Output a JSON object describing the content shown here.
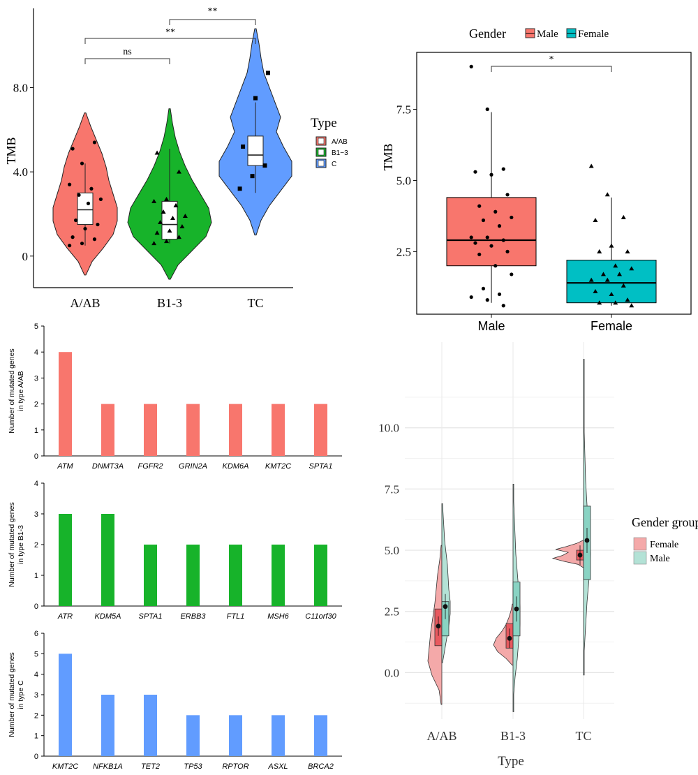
{
  "chart_data": [
    {
      "type": "violin",
      "panel": "A",
      "ylabel": "TMB",
      "categories": [
        "A/AB",
        "B1-3",
        "TC"
      ],
      "yticks": [
        "0",
        "4.0",
        "8.0"
      ],
      "ylim": [
        -1.5,
        11.5
      ],
      "legend": {
        "title": "Type",
        "labels": [
          "A/AB",
          "B1−3",
          "C"
        ],
        "placement": "right"
      },
      "colors": {
        "A/AB": "#f8766d",
        "B1-3": "#17b32a",
        "TC": "#619cff"
      },
      "box_stats": [
        {
          "category": "A/AB",
          "q1": 1.5,
          "median": 2.2,
          "q3": 3.0,
          "low": 0.5,
          "high": 4.4
        },
        {
          "category": "B1-3",
          "q1": 0.8,
          "median": 1.5,
          "q3": 2.6,
          "low": 0.6,
          "high": 5.1
        },
        {
          "category": "TC",
          "q1": 4.3,
          "median": 4.8,
          "q3": 5.7,
          "low": 3.0,
          "high": 7.3
        }
      ],
      "violin_range": [
        {
          "category": "A/AB",
          "min": -0.9,
          "max": 6.8
        },
        {
          "category": "B1-3",
          "min": -1.1,
          "max": 7.0
        },
        {
          "category": "TC",
          "min": 1.0,
          "max": 10.8
        }
      ],
      "points": [
        {
          "category": "A/AB",
          "shape": "circle",
          "values": [
            0.5,
            0.6,
            0.8,
            0.9,
            1.3,
            1.5,
            1.7,
            2.5,
            2.7,
            2.9,
            3.2,
            3.4,
            4.4,
            5.4,
            5.1
          ]
        },
        {
          "category": "B1-3",
          "shape": "triangle",
          "values": [
            0.6,
            0.7,
            0.9,
            1.1,
            1.2,
            1.4,
            1.6,
            1.8,
            1.9,
            2.1,
            2.4,
            2.6,
            2.7,
            4.0,
            4.9
          ]
        },
        {
          "category": "TC",
          "shape": "square",
          "values": [
            3.2,
            3.8,
            4.3,
            5.2,
            7.5,
            8.7
          ]
        }
      ],
      "significance": [
        {
          "pair": [
            "A/AB",
            "B1-3"
          ],
          "label": "ns"
        },
        {
          "pair": [
            "A/AB",
            "TC"
          ],
          "label": "**"
        },
        {
          "pair": [
            "B1-3",
            "TC"
          ],
          "label": "**"
        }
      ]
    },
    {
      "type": "box",
      "panel": "B",
      "ylabel": "TMB",
      "categories": [
        "Male",
        "Female"
      ],
      "yticks": [
        "2.5",
        "5.0",
        "7.5"
      ],
      "ylim": [
        0.3,
        9.5
      ],
      "legend": {
        "title": "Gender",
        "labels": [
          "Male",
          "Female"
        ],
        "placement": "top"
      },
      "colors": {
        "Male": "#f8766d",
        "Female": "#00bfc4"
      },
      "box_stats": [
        {
          "category": "Male",
          "q1": 2.0,
          "median": 2.9,
          "q3": 4.4,
          "low": 0.7,
          "high": 7.4
        },
        {
          "category": "Female",
          "q1": 0.7,
          "median": 1.4,
          "q3": 2.2,
          "low": 0.6,
          "high": 4.4
        }
      ],
      "points": [
        {
          "category": "Male",
          "shape": "circle",
          "values": [
            9.0,
            7.5,
            5.4,
            5.3,
            5.2,
            4.5,
            4.1,
            3.9,
            3.7,
            3.6,
            3.4,
            3.0,
            3.0,
            2.9,
            2.8,
            2.7,
            2.5,
            2.4,
            2.0,
            1.7,
            1.2,
            1.0,
            0.9,
            0.8,
            0.6
          ]
        },
        {
          "category": "Female",
          "shape": "triangle",
          "values": [
            5.5,
            4.5,
            3.7,
            3.6,
            2.7,
            2.5,
            2.5,
            2.0,
            1.9,
            1.7,
            1.7,
            1.5,
            1.5,
            1.3,
            1.1,
            1.0,
            0.8,
            0.7,
            0.7,
            0.6
          ]
        }
      ],
      "significance": [
        {
          "pair": [
            "Male",
            "Female"
          ],
          "label": "*"
        }
      ]
    },
    {
      "type": "bar",
      "panel": "C1",
      "ylabel": "Number of mutated genes in type A/AB",
      "categories": [
        "ATM",
        "DNMT3A",
        "FGFR2",
        "GRIN2A",
        "KDM6A",
        "KMT2C",
        "SPTA1"
      ],
      "values": [
        4,
        2,
        2,
        2,
        2,
        2,
        2
      ],
      "ylim": [
        0,
        5
      ],
      "yticks": [
        "0",
        "1",
        "2",
        "3",
        "4",
        "5"
      ],
      "color": "#f8766d"
    },
    {
      "type": "bar",
      "panel": "C2",
      "ylabel": "Number of mutated genes in type B1-3",
      "categories": [
        "ATR",
        "KDM5A",
        "SPTA1",
        "ERBB3",
        "FTL1",
        "MSH6",
        "C11orf30"
      ],
      "values": [
        3,
        3,
        2,
        2,
        2,
        2,
        2
      ],
      "ylim": [
        0,
        4
      ],
      "yticks": [
        "0",
        "1",
        "2",
        "3",
        "4"
      ],
      "color": "#17b32a"
    },
    {
      "type": "bar",
      "panel": "C3",
      "ylabel": "Number of mutated genes in type C",
      "categories": [
        "KMT2C",
        "NFKB1A",
        "TET2",
        "TP53",
        "RPTOR",
        "ASXL",
        "BRCA2"
      ],
      "values": [
        5,
        3,
        3,
        2,
        2,
        2,
        2
      ],
      "ylim": [
        0,
        6
      ],
      "yticks": [
        "0",
        "1",
        "2",
        "3",
        "4",
        "5",
        "6"
      ],
      "color": "#619cff"
    },
    {
      "type": "split-violin",
      "panel": "D",
      "xlabel": "Type",
      "categories": [
        "A/AB",
        "B1-3",
        "TC"
      ],
      "yticks": [
        "0.0",
        "2.5",
        "5.0",
        "7.5",
        "10.0"
      ],
      "ylim": [
        -1.9,
        13.5
      ],
      "grid": true,
      "legend": {
        "title": "Gender group",
        "labels": [
          "Female",
          "Male"
        ],
        "placement": "right"
      },
      "colors": {
        "Female": "#e8595f",
        "Male": "#89d3c3"
      },
      "groups": [
        {
          "category": "A/AB",
          "female": {
            "q1": 1.1,
            "median": 1.9,
            "q3": 2.6,
            "mean": 1.9,
            "min": -1.3,
            "max": 5.2
          },
          "male": {
            "q1": 1.5,
            "median": 2.7,
            "q3": 2.9,
            "mean": 2.7,
            "min": 0.4,
            "max": 6.9
          }
        },
        {
          "category": "B1-3",
          "female": {
            "q1": 1.0,
            "median": 1.4,
            "q3": 2.0,
            "mean": 1.4,
            "min": 0.3,
            "max": 2.8
          },
          "male": {
            "q1": 1.5,
            "median": 2.6,
            "q3": 3.7,
            "mean": 2.6,
            "min": -1.6,
            "max": 7.7
          }
        },
        {
          "category": "TC",
          "female": {
            "q1": 4.6,
            "median": 4.8,
            "q3": 5.0,
            "mean": 4.8,
            "min": 4.3,
            "max": 5.4
          },
          "male": {
            "q1": 3.8,
            "median": 5.4,
            "q3": 6.8,
            "mean": 5.4,
            "min": -0.1,
            "max": 12.8
          }
        }
      ]
    }
  ]
}
